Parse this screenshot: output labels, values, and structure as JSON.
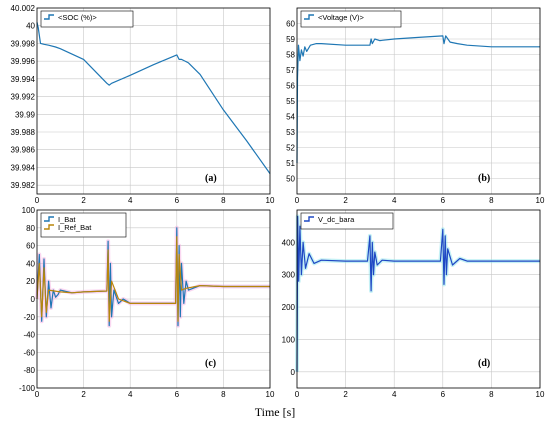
{
  "figure": {
    "xlabel": "Time [s]"
  },
  "chart_data": [
    {
      "id": "a",
      "type": "line",
      "panel_label": "(a)",
      "legend": [
        "<SOC (%)>"
      ],
      "xlim": [
        0,
        10
      ],
      "ylim": [
        39.981,
        40.002
      ],
      "xticks": [
        0,
        2,
        4,
        6,
        8,
        10
      ],
      "yticks": [
        39.982,
        39.984,
        39.986,
        39.988,
        39.99,
        39.992,
        39.994,
        39.996,
        39.998,
        40,
        40.002
      ],
      "ytick_labels": [
        "39.982",
        "39.984",
        "39.986",
        "39.988",
        "39.99",
        "39.992",
        "39.994",
        "39.996",
        "39.998",
        "40",
        "40.002"
      ],
      "grid": true,
      "series": [
        {
          "color": "#1f77b4",
          "x": [
            0,
            0.05,
            0.15,
            0.3,
            0.5,
            0.8,
            1.0,
            2.0,
            3.0,
            3.1,
            3.2,
            4.0,
            5.0,
            6.0,
            6.1,
            6.2,
            6.5,
            7.0,
            8.0,
            9.0,
            10.0
          ],
          "y": [
            40.0004,
            39.9998,
            39.998,
            39.9979,
            39.9978,
            39.9976,
            39.9974,
            39.9962,
            39.9935,
            39.9933,
            39.9935,
            39.9944,
            39.9956,
            39.9967,
            39.9962,
            39.9962,
            39.9958,
            39.9945,
            39.9905,
            39.987,
            39.9833
          ]
        }
      ]
    },
    {
      "id": "b",
      "type": "line",
      "panel_label": "(b)",
      "legend": [
        "<Voltage (V)>"
      ],
      "xlim": [
        0,
        10
      ],
      "ylim": [
        49,
        61
      ],
      "xticks": [
        0,
        2,
        4,
        6,
        8,
        10
      ],
      "yticks": [
        50,
        51,
        52,
        53,
        54,
        55,
        56,
        57,
        58,
        59,
        60
      ],
      "ytick_labels": [
        "50",
        "51",
        "52",
        "53",
        "54",
        "55",
        "56",
        "57",
        "58",
        "59",
        "60"
      ],
      "grid": true,
      "series": [
        {
          "color": "#1f77b4",
          "x": [
            0,
            0.02,
            0.06,
            0.12,
            0.18,
            0.25,
            0.32,
            0.4,
            0.55,
            0.8,
            1.0,
            2.0,
            3.0,
            3.05,
            3.1,
            3.2,
            3.4,
            4.0,
            5.0,
            6.0,
            6.05,
            6.12,
            6.3,
            6.6,
            7.0,
            8.0,
            9.0,
            10.0
          ],
          "y": [
            51.0,
            56.5,
            58.6,
            57.6,
            58.3,
            57.9,
            58.5,
            58.2,
            58.6,
            58.7,
            58.7,
            58.6,
            58.6,
            59.0,
            58.7,
            59.0,
            58.9,
            59.0,
            59.1,
            59.2,
            58.7,
            59.2,
            58.8,
            58.7,
            58.6,
            58.5,
            58.5,
            58.5
          ]
        }
      ]
    },
    {
      "id": "c",
      "type": "line",
      "panel_label": "(c)",
      "legend": [
        "I_Bat",
        "I_Ref_Bat"
      ],
      "xlim": [
        0,
        10
      ],
      "ylim": [
        -100,
        100
      ],
      "xticks": [
        0,
        2,
        4,
        6,
        8,
        10
      ],
      "yticks": [
        -100,
        -80,
        -60,
        -40,
        -20,
        0,
        20,
        40,
        60,
        80,
        100
      ],
      "ytick_labels": [
        "-100",
        "-80",
        "-60",
        "-40",
        "-20",
        "0",
        "20",
        "40",
        "60",
        "80",
        "100"
      ],
      "grid": true,
      "series": [
        {
          "color": "#1f77b4",
          "x": [
            0,
            0.1,
            0.2,
            0.3,
            0.4,
            0.5,
            0.6,
            0.7,
            0.8,
            0.9,
            1.0,
            1.5,
            2.0,
            3.0,
            3.05,
            3.1,
            3.15,
            3.2,
            3.3,
            3.5,
            3.7,
            4.0,
            5.0,
            5.95,
            6.0,
            6.05,
            6.1,
            6.15,
            6.2,
            6.3,
            6.4,
            6.5,
            7.0,
            8.0,
            9.0,
            10.0
          ],
          "y": [
            0,
            50,
            -25,
            45,
            -20,
            20,
            -10,
            10,
            2,
            5,
            10,
            7,
            8,
            9,
            65,
            -30,
            40,
            -20,
            10,
            -5,
            0,
            -5,
            -5,
            -5,
            80,
            -30,
            60,
            -20,
            40,
            -5,
            20,
            10,
            15,
            14,
            14,
            14
          ]
        },
        {
          "color": "#b8860b",
          "x": [
            0,
            0.1,
            0.2,
            0.3,
            0.4,
            0.5,
            1.0,
            1.5,
            2.0,
            3.0,
            3.05,
            3.1,
            3.2,
            3.5,
            4.0,
            5.0,
            5.95,
            6.0,
            6.05,
            6.1,
            6.2,
            6.4,
            7.0,
            8.0,
            9.0,
            10.0
          ],
          "y": [
            0,
            40,
            -20,
            35,
            -15,
            10,
            8,
            7,
            8,
            9,
            55,
            -25,
            20,
            0,
            -5,
            -5,
            -5,
            70,
            -25,
            50,
            10,
            12,
            15,
            14,
            14,
            14
          ]
        }
      ]
    },
    {
      "id": "d",
      "type": "line",
      "panel_label": "(d)",
      "legend": [
        "V_dc_bara"
      ],
      "xlim": [
        0,
        10
      ],
      "ylim": [
        -50,
        500
      ],
      "xticks": [
        0,
        2,
        4,
        6,
        8,
        10
      ],
      "yticks": [
        0,
        100,
        200,
        300,
        400
      ],
      "ytick_labels": [
        "0",
        "100",
        "200",
        "300",
        "400"
      ],
      "grid": true,
      "series": [
        {
          "color": "#1f48c4",
          "x": [
            0,
            0.03,
            0.07,
            0.12,
            0.18,
            0.25,
            0.35,
            0.5,
            0.7,
            1.0,
            2.0,
            2.9,
            3.0,
            3.05,
            3.1,
            3.15,
            3.2,
            3.3,
            3.5,
            4.0,
            5.0,
            5.9,
            6.0,
            6.05,
            6.1,
            6.15,
            6.2,
            6.4,
            6.7,
            7.0,
            8.0,
            9.0,
            10.0
          ],
          "y": [
            0,
            480,
            280,
            450,
            300,
            400,
            320,
            365,
            335,
            345,
            342,
            342,
            420,
            250,
            400,
            300,
            370,
            330,
            345,
            342,
            342,
            342,
            440,
            270,
            420,
            300,
            380,
            330,
            350,
            342,
            342,
            342,
            342
          ]
        }
      ]
    }
  ]
}
